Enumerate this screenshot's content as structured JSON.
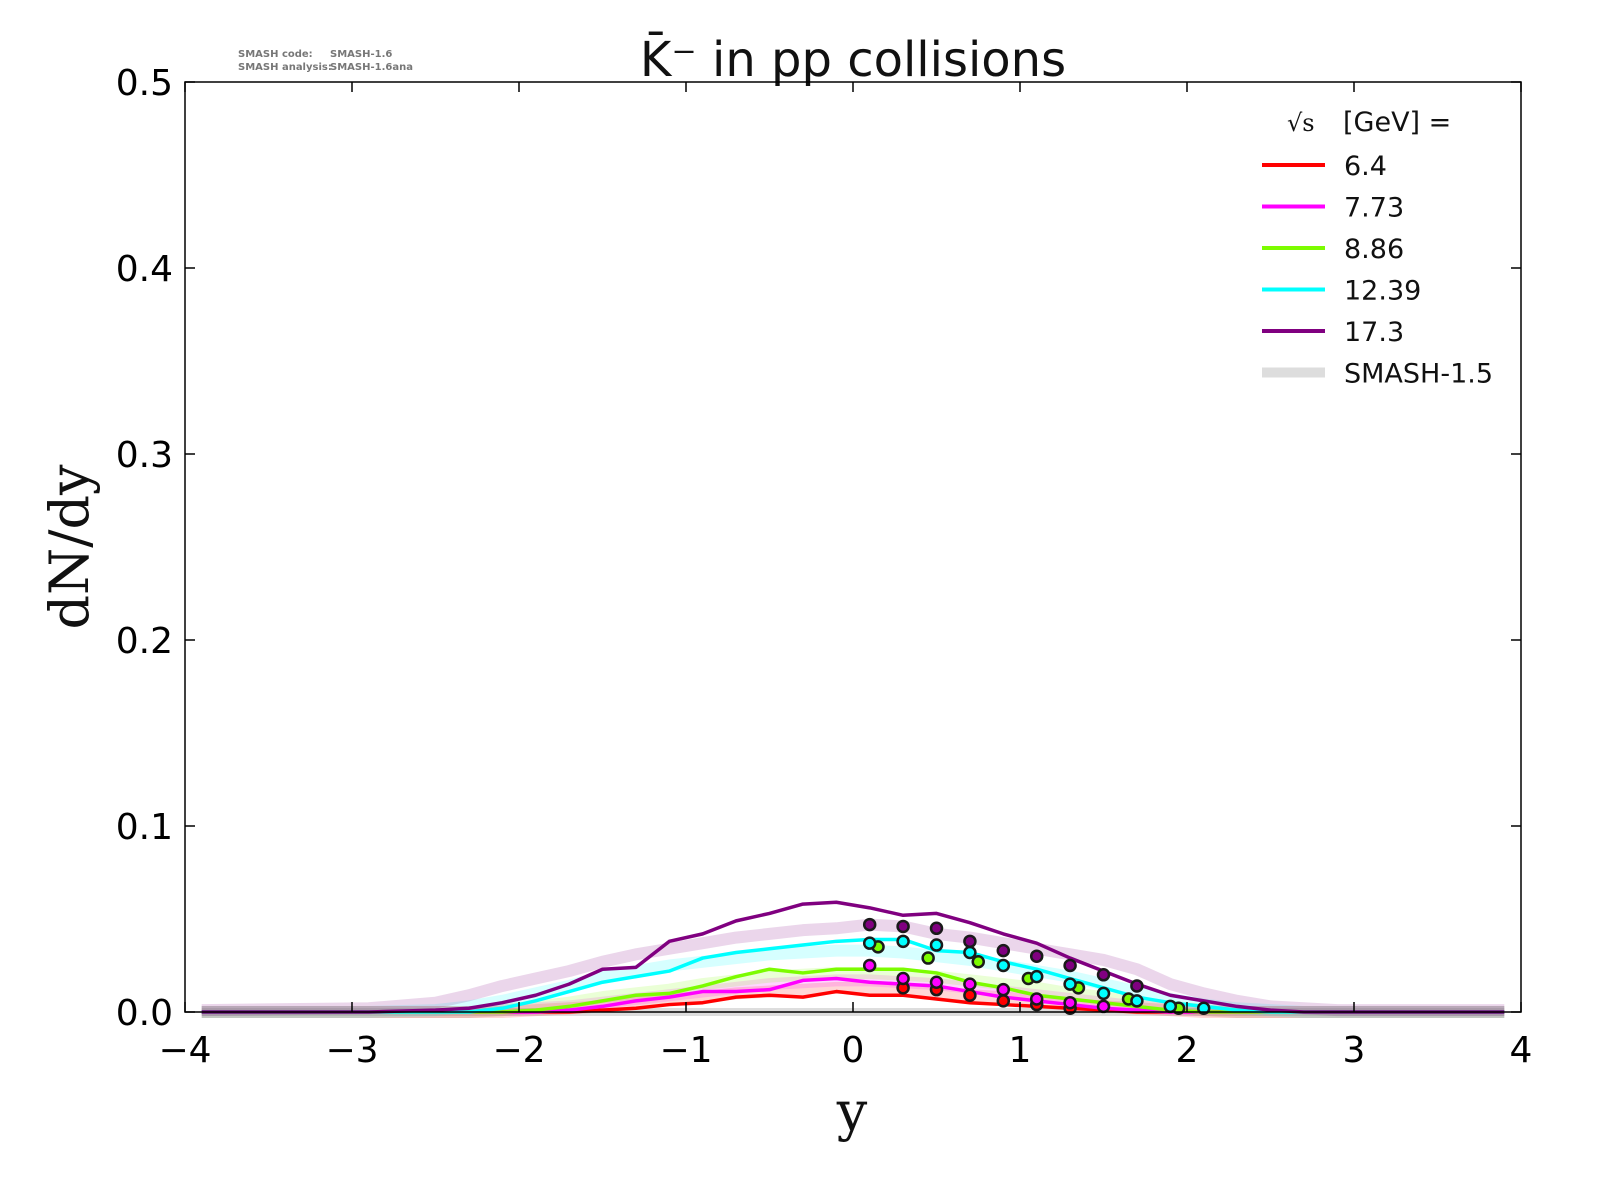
{
  "meta": {
    "code_label": "SMASH code:",
    "code_value": "SMASH-1.6",
    "analysis_label": "SMASH analysis:",
    "analysis_value": "SMASH-1.6ana"
  },
  "chart_data": {
    "type": "line",
    "title": "K̄⁻ in pp collisions",
    "xlabel": "y",
    "ylabel": "dN/dy",
    "xlim": [
      -4,
      4
    ],
    "ylim": [
      0,
      0.5
    ],
    "xticks": [
      "−4",
      "−3",
      "−2",
      "−1",
      "0",
      "1",
      "2",
      "3",
      "4"
    ],
    "yticks": [
      "0.0",
      "0.1",
      "0.2",
      "0.3",
      "0.4",
      "0.5"
    ],
    "grid": false,
    "legend": {
      "placement": "top-right",
      "title_sqrt": "√s",
      "title_rest": "[GeV] =",
      "band_label": "SMASH-1.5",
      "band_color": "#dddddd"
    },
    "x": [
      -3.9,
      -2.9,
      -2.5,
      -2.3,
      -2.1,
      -1.9,
      -1.7,
      -1.5,
      -1.3,
      -1.1,
      -0.9,
      -0.7,
      -0.5,
      -0.3,
      -0.1,
      0.1,
      0.3,
      0.5,
      0.7,
      0.9,
      1.1,
      1.3,
      1.5,
      1.7,
      1.9,
      2.1,
      2.3,
      2.5,
      2.7,
      2.9,
      3.9
    ],
    "series": [
      {
        "name": "6.4",
        "color": "#ff0000",
        "values": [
          0,
          0,
          0,
          0,
          0,
          0,
          0,
          0.001,
          0.002,
          0.004,
          0.005,
          0.008,
          0.009,
          0.008,
          0.011,
          0.009,
          0.009,
          0.007,
          0.005,
          0.004,
          0.003,
          0.002,
          0.001,
          0,
          0,
          0,
          0,
          0,
          0,
          0,
          0
        ],
        "band": [
          0,
          0,
          0,
          0,
          0,
          0.001,
          0.002,
          0.003,
          0.005,
          0.007,
          0.008,
          0.01,
          0.011,
          0.012,
          0.013,
          0.013,
          0.012,
          0.011,
          0.009,
          0.008,
          0.006,
          0.004,
          0.003,
          0.002,
          0.001,
          0,
          0,
          0,
          0,
          0,
          0
        ],
        "points": {
          "x": [
            0.3,
            0.5,
            0.7,
            0.9,
            1.1,
            1.3
          ],
          "y": [
            0.013,
            0.012,
            0.009,
            0.006,
            0.004,
            0.002
          ]
        }
      },
      {
        "name": "7.73",
        "color": "#ff00ff",
        "values": [
          0,
          0,
          0,
          0,
          0,
          0,
          0.001,
          0.003,
          0.006,
          0.008,
          0.011,
          0.011,
          0.012,
          0.017,
          0.018,
          0.016,
          0.015,
          0.014,
          0.011,
          0.008,
          0.006,
          0.004,
          0.002,
          0.001,
          0,
          0,
          0,
          0,
          0,
          0,
          0
        ],
        "band": [
          0,
          0,
          0,
          0,
          0.001,
          0.002,
          0.003,
          0.005,
          0.007,
          0.009,
          0.011,
          0.013,
          0.015,
          0.016,
          0.017,
          0.017,
          0.016,
          0.015,
          0.013,
          0.011,
          0.009,
          0.007,
          0.005,
          0.003,
          0.002,
          0.001,
          0,
          0,
          0,
          0,
          0
        ],
        "points": {
          "x": [
            0.1,
            0.3,
            0.5,
            0.7,
            0.9,
            1.1,
            1.3,
            1.5
          ],
          "y": [
            0.025,
            0.018,
            0.016,
            0.015,
            0.012,
            0.007,
            0.005,
            0.003
          ]
        }
      },
      {
        "name": "8.86",
        "color": "#7cfc00",
        "values": [
          0,
          0,
          0,
          0,
          0,
          0.001,
          0.003,
          0.006,
          0.009,
          0.01,
          0.014,
          0.019,
          0.023,
          0.021,
          0.023,
          0.023,
          0.023,
          0.021,
          0.016,
          0.013,
          0.009,
          0.007,
          0.005,
          0.003,
          0.001,
          0,
          0,
          0,
          0,
          0,
          0
        ],
        "band": [
          0,
          0,
          0,
          0,
          0.001,
          0.003,
          0.005,
          0.008,
          0.01,
          0.012,
          0.015,
          0.017,
          0.019,
          0.02,
          0.021,
          0.021,
          0.02,
          0.019,
          0.017,
          0.015,
          0.013,
          0.01,
          0.008,
          0.005,
          0.003,
          0.001,
          0,
          0,
          0,
          0,
          0
        ],
        "points": {
          "x": [
            0.15,
            0.45,
            0.75,
            1.05,
            1.35,
            1.65,
            1.95
          ],
          "y": [
            0.035,
            0.029,
            0.027,
            0.018,
            0.013,
            0.007,
            0.002
          ]
        }
      },
      {
        "name": "12.39",
        "color": "#00ffff",
        "values": [
          0,
          0,
          0,
          0,
          0.002,
          0.006,
          0.011,
          0.016,
          0.019,
          0.022,
          0.029,
          0.032,
          0.034,
          0.036,
          0.038,
          0.039,
          0.039,
          0.033,
          0.032,
          0.027,
          0.023,
          0.018,
          0.013,
          0.008,
          0.005,
          0.003,
          0.001,
          0,
          0,
          0,
          0
        ],
        "band": [
          0,
          0,
          0.001,
          0.003,
          0.006,
          0.01,
          0.014,
          0.019,
          0.022,
          0.025,
          0.027,
          0.029,
          0.031,
          0.032,
          0.033,
          0.033,
          0.032,
          0.03,
          0.028,
          0.025,
          0.022,
          0.019,
          0.015,
          0.011,
          0.007,
          0.004,
          0.002,
          0.001,
          0,
          0,
          0
        ],
        "points": {
          "x": [
            0.1,
            0.3,
            0.5,
            0.7,
            0.9,
            1.1,
            1.3,
            1.5,
            1.7,
            1.9,
            2.1
          ],
          "y": [
            0.037,
            0.038,
            0.036,
            0.032,
            0.025,
            0.019,
            0.015,
            0.01,
            0.006,
            0.003,
            0.002
          ]
        }
      },
      {
        "name": "17.3",
        "color": "#800080",
        "values": [
          0,
          0,
          0.001,
          0.002,
          0.005,
          0.009,
          0.015,
          0.023,
          0.024,
          0.038,
          0.042,
          0.049,
          0.053,
          0.058,
          0.059,
          0.056,
          0.052,
          0.053,
          0.048,
          0.042,
          0.037,
          0.029,
          0.022,
          0.015,
          0.009,
          0.006,
          0.003,
          0.001,
          0,
          0,
          0
        ],
        "band": [
          0.001,
          0.002,
          0.005,
          0.009,
          0.014,
          0.018,
          0.022,
          0.027,
          0.031,
          0.034,
          0.037,
          0.04,
          0.042,
          0.044,
          0.045,
          0.047,
          0.046,
          0.042,
          0.04,
          0.037,
          0.034,
          0.031,
          0.028,
          0.023,
          0.015,
          0.01,
          0.006,
          0.003,
          0.002,
          0.001,
          0.001
        ],
        "points": {
          "x": [
            0.1,
            0.3,
            0.5,
            0.7,
            0.9,
            1.1,
            1.3,
            1.5,
            1.7
          ],
          "y": [
            0.047,
            0.046,
            0.045,
            0.038,
            0.033,
            0.03,
            0.025,
            0.02,
            0.014
          ]
        }
      }
    ]
  }
}
